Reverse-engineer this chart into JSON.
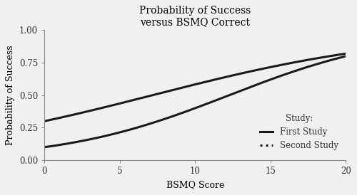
{
  "title_line1": "Probability of Success",
  "title_line2": "versus BSMQ Correct",
  "xlabel": "BSMQ Score",
  "ylabel": "Probability of Success",
  "xlim": [
    0,
    20
  ],
  "ylim": [
    0.0,
    1.0
  ],
  "xticks": [
    0,
    5,
    10,
    15,
    20
  ],
  "yticks": [
    0.0,
    0.25,
    0.5,
    0.75,
    1.0
  ],
  "ytick_labels": [
    "0.00",
    "0.25",
    "0.50",
    "0.75",
    "1.00"
  ],
  "line_color": "#1a1a1a",
  "background_color": "#f0f0f0",
  "legend_title": "Study:",
  "legend_entries": [
    "First Study",
    "Second Study"
  ],
  "first_study_intercept": -2.197,
  "second_study_intercept": -0.847,
  "title_fontsize": 10,
  "axis_label_fontsize": 9,
  "tick_fontsize": 8.5,
  "legend_fontsize": 8.5
}
